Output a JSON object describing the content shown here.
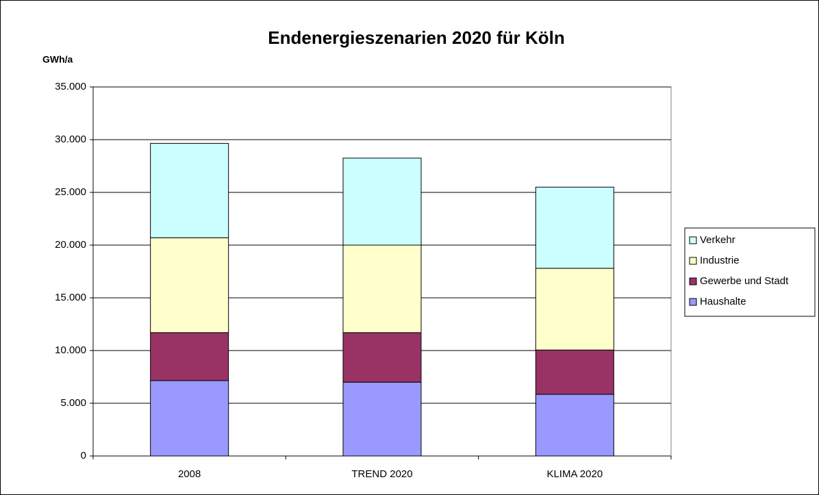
{
  "chart_data": {
    "type": "stacked_bar",
    "title": "Endenergieszenarien 2020 für Köln",
    "y_label": "GWh/a",
    "categories": [
      "2008",
      "TREND 2020",
      "KLIMA 2020"
    ],
    "series": [
      {
        "name": "Haushalte",
        "color": "#9999ff",
        "values": [
          7150,
          7000,
          5850
        ]
      },
      {
        "name": "Gewerbe und Stadt",
        "color": "#993366",
        "values": [
          4550,
          4700,
          4200
        ]
      },
      {
        "name": "Industrie",
        "color": "#ffffcc",
        "values": [
          9000,
          8300,
          7750
        ]
      },
      {
        "name": "Verkehr",
        "color": "#ccffff",
        "values": [
          8950,
          8250,
          7700
        ]
      }
    ],
    "ylim": [
      0,
      35000
    ],
    "yticks": [
      0,
      {
        "value": 5000,
        "label": "5.000"
      },
      {
        "value": 10000,
        "label": "10.000"
      },
      {
        "value": 15000,
        "label": "15.000"
      },
      {
        "value": 20000,
        "label": "20.000"
      },
      {
        "value": 25000,
        "label": "25.000"
      },
      {
        "value": 30000,
        "label": "30.000"
      },
      {
        "value": 35000,
        "label": "35.000"
      }
    ],
    "grid": true,
    "legend": "right"
  }
}
